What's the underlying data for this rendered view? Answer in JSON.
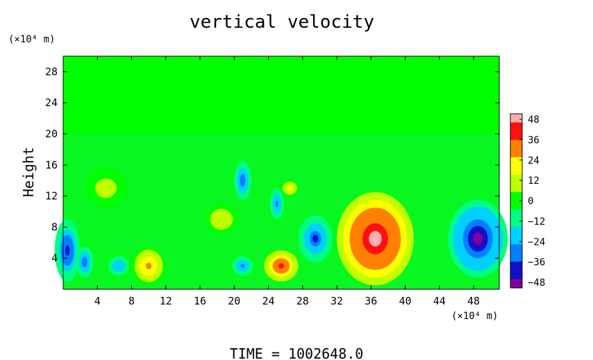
{
  "chart_data": {
    "type": "heatmap",
    "title": "vertical velocity",
    "ylabel": "Height",
    "y_unit_label": "(×10⁴ m)",
    "x_unit_label": "(×10⁴ m)",
    "footer": "TIME  =  1002648.0",
    "xlim": [
      0,
      51
    ],
    "ylim": [
      0,
      30
    ],
    "x_ticks": [
      "4",
      "8",
      "12",
      "16",
      "20",
      "24",
      "28",
      "32",
      "36",
      "40",
      "44",
      "48"
    ],
    "y_ticks": [
      "4",
      "8",
      "12",
      "16",
      "20",
      "24",
      "28"
    ],
    "colorbar": {
      "ticks": [
        "48",
        "36",
        "24",
        "12",
        "0",
        "−12",
        "−24",
        "−36",
        "−48"
      ],
      "vmin": -48,
      "vmax": 48,
      "colors": [
        "#8000a0",
        "#1010c8",
        "#0080ff",
        "#00d0ff",
        "#00ff80",
        "#00ff00",
        "#c0ff00",
        "#ffff00",
        "#ff8000",
        "#ff1010",
        "#ffb0b0"
      ]
    },
    "background_value": 0,
    "features": [
      {
        "x": 36.5,
        "y": 6.5,
        "value": 48,
        "rx": 4.5,
        "ry": 6.0
      },
      {
        "x": 25.5,
        "y": 3.0,
        "value": 40,
        "rx": 2.0,
        "ry": 2.0
      },
      {
        "x": 10.0,
        "y": 3.0,
        "value": 24,
        "rx": 2.0,
        "ry": 2.5
      },
      {
        "x": 26.5,
        "y": 13.0,
        "value": 18,
        "rx": 1.0,
        "ry": 1.0
      },
      {
        "x": 48.5,
        "y": 6.5,
        "value": -48,
        "rx": 3.5,
        "ry": 5.0
      },
      {
        "x": 0.5,
        "y": 5.0,
        "value": -40,
        "rx": 1.5,
        "ry": 4.0
      },
      {
        "x": 29.5,
        "y": 6.5,
        "value": -34,
        "rx": 2.0,
        "ry": 3.0
      },
      {
        "x": 21.0,
        "y": 14.0,
        "value": -32,
        "rx": 1.0,
        "ry": 2.5
      },
      {
        "x": 25.0,
        "y": 11.0,
        "value": -28,
        "rx": 1.0,
        "ry": 2.5
      },
      {
        "x": 21.0,
        "y": 3.0,
        "value": -26,
        "rx": 1.5,
        "ry": 1.5
      },
      {
        "x": 6.5,
        "y": 3.0,
        "value": -22,
        "rx": 1.5,
        "ry": 1.5
      },
      {
        "x": 2.5,
        "y": 3.5,
        "value": -30,
        "rx": 1.0,
        "ry": 2.0
      },
      {
        "x": 18.5,
        "y": 9.0,
        "value": 10,
        "rx": 2.0,
        "ry": 2.0
      },
      {
        "x": 5.0,
        "y": 13.0,
        "value": 8,
        "rx": 2.5,
        "ry": 2.5
      }
    ]
  }
}
